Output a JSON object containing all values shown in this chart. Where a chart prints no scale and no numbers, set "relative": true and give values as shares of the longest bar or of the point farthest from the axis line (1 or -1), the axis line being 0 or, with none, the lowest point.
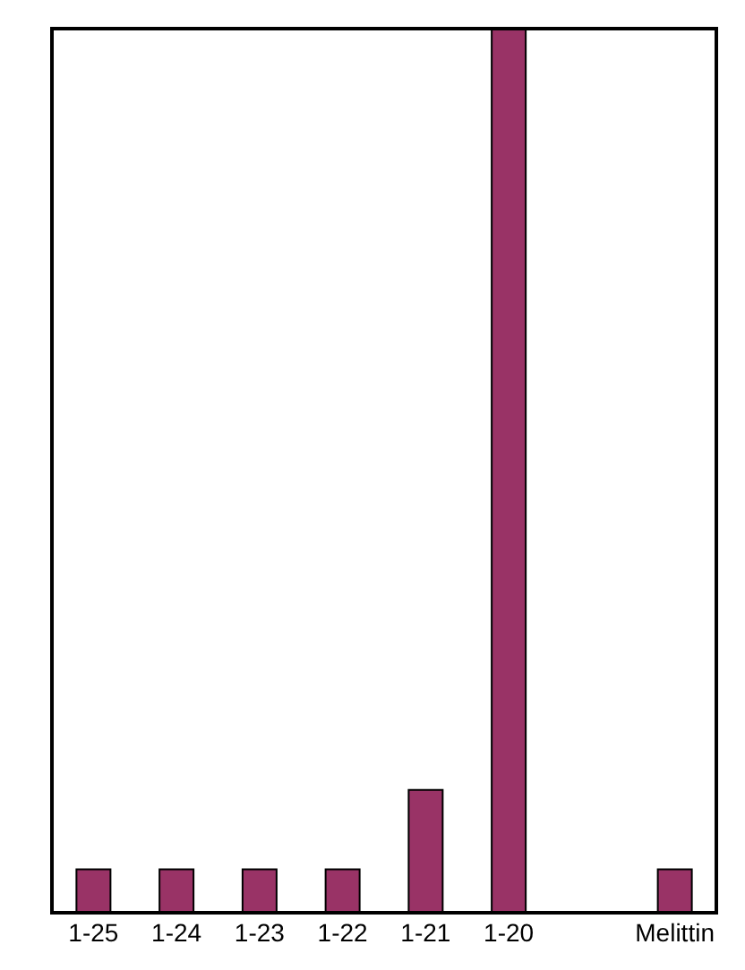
{
  "chart_data": {
    "type": "bar",
    "relative": true,
    "categories": [
      "1-25",
      "1-24",
      "1-23",
      "1-22",
      "1-21",
      "1-20",
      null,
      "Melittin"
    ],
    "values": [
      0.05,
      0.05,
      0.05,
      0.05,
      0.14,
      1,
      null,
      0.05
    ],
    "color": "#993366"
  }
}
